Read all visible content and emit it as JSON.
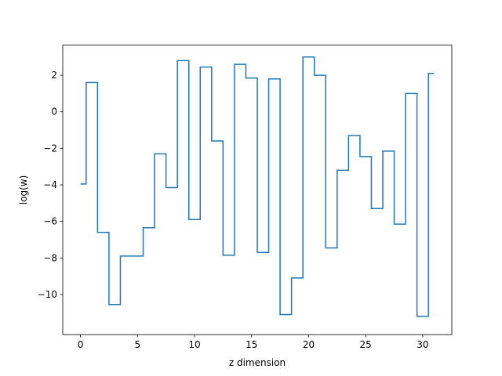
{
  "chart_data": {
    "type": "line",
    "drawstyle": "steps-mid",
    "xlabel": "z dimension",
    "ylabel": "log(w)",
    "xlim": [
      -1.55,
      32.55
    ],
    "ylim": [
      -12.2,
      3.65
    ],
    "xticks": [
      0,
      5,
      10,
      15,
      20,
      25,
      30
    ],
    "yticks": [
      2,
      0,
      -2,
      -4,
      -6,
      -8,
      -10
    ],
    "x": [
      0,
      1,
      2,
      3,
      4,
      5,
      6,
      7,
      8,
      9,
      10,
      11,
      12,
      13,
      14,
      15,
      16,
      17,
      18,
      19,
      20,
      21,
      22,
      23,
      24,
      25,
      26,
      27,
      28,
      29,
      30,
      31
    ],
    "series": [
      {
        "color": "#1f77b4",
        "values": [
          -3.95,
          1.6,
          -6.6,
          -10.55,
          -7.9,
          -7.9,
          -6.35,
          -2.3,
          -4.15,
          2.8,
          -5.9,
          2.45,
          -1.6,
          -7.85,
          2.6,
          1.85,
          -7.7,
          1.8,
          -11.1,
          -9.1,
          3.0,
          2.0,
          -7.45,
          -3.2,
          -1.3,
          -2.45,
          -5.3,
          -2.15,
          -6.15,
          1.0,
          -11.2,
          2.1
        ]
      }
    ],
    "grid": false,
    "legend": "none"
  }
}
